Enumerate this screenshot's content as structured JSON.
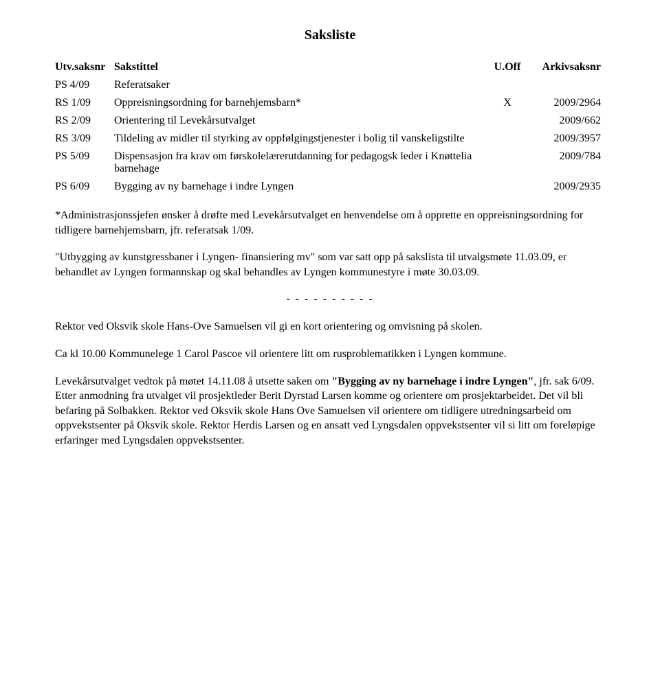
{
  "title": "Saksliste",
  "headers": {
    "saksnr": "Utv.saksnr",
    "tittel": "Sakstittel",
    "uoff": "U.Off",
    "arkiv": "Arkivsaksnr"
  },
  "rows": [
    {
      "saksnr": "PS 4/09",
      "tittel": "Referatsaker",
      "uoff": "",
      "arkiv": ""
    },
    {
      "saksnr": "RS 1/09",
      "tittel": "Oppreisningsordning for barnehjemsbarn*",
      "uoff": "X",
      "arkiv": "2009/2964"
    },
    {
      "saksnr": "RS 2/09",
      "tittel": "Orientering til Levekårsutvalget",
      "uoff": "",
      "arkiv": "2009/662"
    },
    {
      "saksnr": "RS 3/09",
      "tittel": "Tildeling av midler til styrking av oppfølgingstjenester i bolig til vanskeligstilte",
      "uoff": "",
      "arkiv": "2009/3957"
    },
    {
      "saksnr": "PS 5/09",
      "tittel": "Dispensasjon fra krav om førskolelærerutdanning for pedagogsk leder i Knøttelia barnehage",
      "uoff": "",
      "arkiv": "2009/784"
    },
    {
      "saksnr": "PS 6/09",
      "tittel": "Bygging av ny barnehage i indre Lyngen",
      "uoff": "",
      "arkiv": "2009/2935"
    }
  ],
  "paras": {
    "p1": "*Administrasjonssjefen ønsker å drøfte med Levekårsutvalget en henvendelse om å opprette en oppreisningsordning for tidligere barnehjemsbarn, jfr. referatsak 1/09.",
    "p2": "\"Utbygging av kunstgressbaner i Lyngen- finansiering mv\" som var satt opp på sakslista til utvalgsmøte 11.03.09, er behandlet av Lyngen formannskap og skal behandles av Lyngen kommunestyre i møte 30.03.09.",
    "dashes": "- - - - - - - - - -",
    "p3": "Rektor ved Oksvik skole Hans-Ove Samuelsen vil gi en kort orientering og omvisning på skolen.",
    "p4": "Ca kl 10.00 Kommunelege 1 Carol Pascoe vil orientere litt om rusproblematikken i Lyngen kommune.",
    "p5_pre": "Levekårsutvalget vedtok på møtet 14.11.08 å utsette saken om ",
    "p5_bold": "\"Bygging av ny barnehage i indre Lyngen\"",
    "p5_post": ", jfr. sak 6/09. Etter anmodning fra utvalget vil prosjektleder Berit Dyrstad Larsen komme og orientere om prosjektarbeidet. Det vil bli befaring på Solbakken. Rektor ved Oksvik skole Hans Ove Samuelsen vil orientere om tidligere utredningsarbeid om oppvekstsenter på Oksvik skole. Rektor Herdis Larsen og en ansatt ved Lyngsdalen oppvekstsenter vil si litt om foreløpige erfaringer med Lyngsdalen oppvekstsenter."
  }
}
